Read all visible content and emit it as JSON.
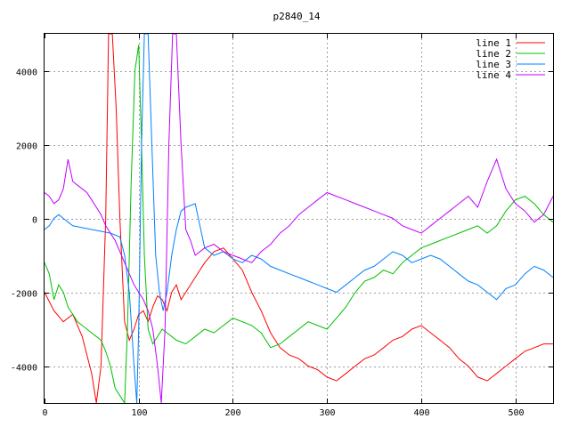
{
  "chart_data": {
    "type": "line",
    "title": "p2840_14",
    "xlabel": "",
    "ylabel": "",
    "xlim": [
      0,
      540
    ],
    "ylim": [
      -5000,
      5000
    ],
    "xticks": [
      0,
      100,
      200,
      300,
      400,
      500
    ],
    "yticks": [
      -4000,
      -2000,
      0,
      2000,
      4000
    ],
    "grid": true,
    "legend_position": "top-right",
    "series": [
      {
        "name": "line 1",
        "color": "#ff0000",
        "x": [
          0,
          10,
          20,
          30,
          40,
          50,
          55,
          60,
          65,
          68,
          72,
          76,
          80,
          85,
          90,
          95,
          100,
          105,
          110,
          115,
          120,
          125,
          130,
          135,
          140,
          145,
          150,
          160,
          170,
          180,
          190,
          200,
          210,
          220,
          230,
          240,
          250,
          260,
          270,
          280,
          290,
          300,
          310,
          320,
          330,
          340,
          350,
          360,
          370,
          380,
          390,
          400,
          410,
          420,
          430,
          440,
          450,
          460,
          470,
          480,
          490,
          500,
          510,
          520,
          530,
          540
        ],
        "y": [
          -2000,
          -2500,
          -2800,
          -2600,
          -3200,
          -4200,
          -5000,
          -4000,
          0,
          5000,
          5000,
          3000,
          0,
          -2800,
          -3300,
          -3000,
          -2600,
          -2500,
          -2800,
          -2400,
          -2100,
          -2200,
          -2500,
          -2000,
          -1800,
          -2200,
          -2000,
          -1600,
          -1200,
          -900,
          -800,
          -1100,
          -1400,
          -2000,
          -2500,
          -3100,
          -3500,
          -3700,
          -3800,
          -4000,
          -4100,
          -4300,
          -4400,
          -4200,
          -4000,
          -3800,
          -3700,
          -3500,
          -3300,
          -3200,
          -3000,
          -2900,
          -3100,
          -3300,
          -3500,
          -3800,
          -4000,
          -4300,
          -4400,
          -4200,
          -4000,
          -3800,
          -3600,
          -3500,
          -3400,
          -3400
        ]
      },
      {
        "name": "line 2",
        "color": "#00c000",
        "x": [
          0,
          5,
          10,
          15,
          20,
          25,
          30,
          35,
          40,
          45,
          50,
          55,
          60,
          65,
          70,
          75,
          80,
          85,
          88,
          92,
          96,
          100,
          103,
          106,
          110,
          115,
          120,
          125,
          130,
          135,
          140,
          150,
          160,
          170,
          180,
          190,
          200,
          210,
          220,
          230,
          240,
          250,
          260,
          270,
          280,
          290,
          300,
          310,
          320,
          330,
          340,
          350,
          360,
          370,
          380,
          390,
          400,
          410,
          420,
          430,
          440,
          450,
          460,
          470,
          480,
          490,
          500,
          510,
          520,
          530,
          540
        ],
        "y": [
          -1200,
          -1500,
          -2200,
          -1800,
          -2000,
          -2400,
          -2600,
          -2800,
          -2900,
          -3000,
          -3100,
          -3200,
          -3300,
          -3600,
          -4000,
          -4600,
          -4800,
          -5000,
          -3000,
          1000,
          4000,
          4700,
          2000,
          -1000,
          -3000,
          -3400,
          -3200,
          -3000,
          -3100,
          -3200,
          -3300,
          -3400,
          -3200,
          -3000,
          -3100,
          -2900,
          -2700,
          -2800,
          -2900,
          -3100,
          -3500,
          -3400,
          -3200,
          -3000,
          -2800,
          -2900,
          -3000,
          -2700,
          -2400,
          -2000,
          -1700,
          -1600,
          -1400,
          -1500,
          -1200,
          -1000,
          -800,
          -700,
          -600,
          -500,
          -400,
          -300,
          -200,
          -400,
          -200,
          200,
          500,
          600,
          400,
          100,
          -100
        ]
      },
      {
        "name": "line 3",
        "color": "#0080ff",
        "x": [
          0,
          5,
          10,
          15,
          20,
          25,
          30,
          40,
          50,
          60,
          70,
          80,
          85,
          90,
          95,
          98,
          100,
          103,
          106,
          110,
          114,
          118,
          122,
          126,
          130,
          135,
          140,
          145,
          150,
          160,
          170,
          180,
          190,
          200,
          210,
          220,
          230,
          240,
          250,
          260,
          270,
          280,
          290,
          300,
          310,
          320,
          330,
          340,
          350,
          360,
          370,
          380,
          390,
          400,
          410,
          420,
          430,
          440,
          450,
          460,
          470,
          480,
          490,
          500,
          510,
          520,
          530,
          540
        ],
        "y": [
          -300,
          -200,
          0,
          100,
          0,
          -100,
          -200,
          -250,
          -300,
          -350,
          -400,
          -500,
          -1000,
          -2000,
          -4000,
          -5000,
          -3000,
          2000,
          5000,
          5000,
          2000,
          -1000,
          -2000,
          -2500,
          -2000,
          -1000,
          -300,
          200,
          300,
          400,
          -800,
          -1000,
          -900,
          -1100,
          -1200,
          -1000,
          -1100,
          -1300,
          -1400,
          -1500,
          -1600,
          -1700,
          -1800,
          -1900,
          -2000,
          -1800,
          -1600,
          -1400,
          -1300,
          -1100,
          -900,
          -1000,
          -1200,
          -1100,
          -1000,
          -1100,
          -1300,
          -1500,
          -1700,
          -1800,
          -2000,
          -2200,
          -1900,
          -1800,
          -1500,
          -1300,
          -1400,
          -1600
        ]
      },
      {
        "name": "line 4",
        "color": "#c000ff",
        "x": [
          0,
          5,
          10,
          15,
          20,
          25,
          30,
          35,
          40,
          45,
          50,
          55,
          60,
          65,
          70,
          75,
          80,
          85,
          90,
          95,
          100,
          105,
          110,
          115,
          120,
          124,
          128,
          132,
          136,
          140,
          145,
          150,
          155,
          160,
          170,
          180,
          190,
          200,
          210,
          220,
          230,
          240,
          250,
          260,
          270,
          280,
          290,
          300,
          310,
          320,
          330,
          340,
          350,
          360,
          370,
          380,
          390,
          400,
          410,
          420,
          430,
          440,
          450,
          460,
          470,
          480,
          490,
          500,
          510,
          520,
          530,
          540
        ],
        "y": [
          700,
          600,
          400,
          500,
          800,
          1600,
          1000,
          900,
          800,
          700,
          500,
          300,
          100,
          -200,
          -400,
          -600,
          -900,
          -1200,
          -1500,
          -1800,
          -2000,
          -2200,
          -2500,
          -3000,
          -4000,
          -5000,
          -3000,
          2000,
          5000,
          5000,
          2000,
          -300,
          -600,
          -1000,
          -800,
          -700,
          -900,
          -1000,
          -1100,
          -1200,
          -900,
          -700,
          -400,
          -200,
          100,
          300,
          500,
          700,
          600,
          500,
          400,
          300,
          200,
          100,
          0,
          -200,
          -300,
          -400,
          -200,
          0,
          200,
          400,
          600,
          300,
          1000,
          1600,
          800,
          400,
          200,
          -100,
          100,
          600
        ]
      }
    ]
  }
}
